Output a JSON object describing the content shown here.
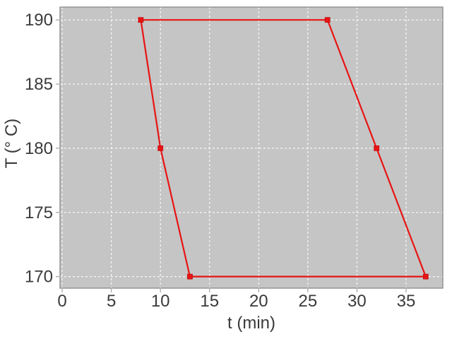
{
  "chart_data": {
    "type": "line",
    "title": "",
    "xlabel": "t (min)",
    "ylabel": "T (° C)",
    "xlim": [
      -0.22,
      38.74
    ],
    "ylim": [
      169.1,
      191.0
    ],
    "xticks": [
      0,
      5,
      10,
      15,
      20,
      25,
      30,
      35
    ],
    "yticks": [
      170,
      175,
      180,
      185,
      190
    ],
    "grid": true,
    "grid_style": "dashed-white",
    "legend": "none",
    "series": [
      {
        "closed": true,
        "marker": "square",
        "color": "#e81414",
        "points": [
          [
            8,
            190
          ],
          [
            27,
            190
          ],
          [
            32,
            180
          ],
          [
            37,
            170
          ],
          [
            13,
            170
          ],
          [
            10,
            180
          ]
        ]
      }
    ],
    "colors": {
      "page_background": "#ffffff",
      "plot_background": "#c5c5c5",
      "gridline": "#fdfdfd",
      "axis_text": "#3a3a3a",
      "tick_mark": "#a9a9a9",
      "plot_border": "#898989",
      "series_red": "#e81414",
      "marker_edge": "#c00e0e"
    }
  }
}
